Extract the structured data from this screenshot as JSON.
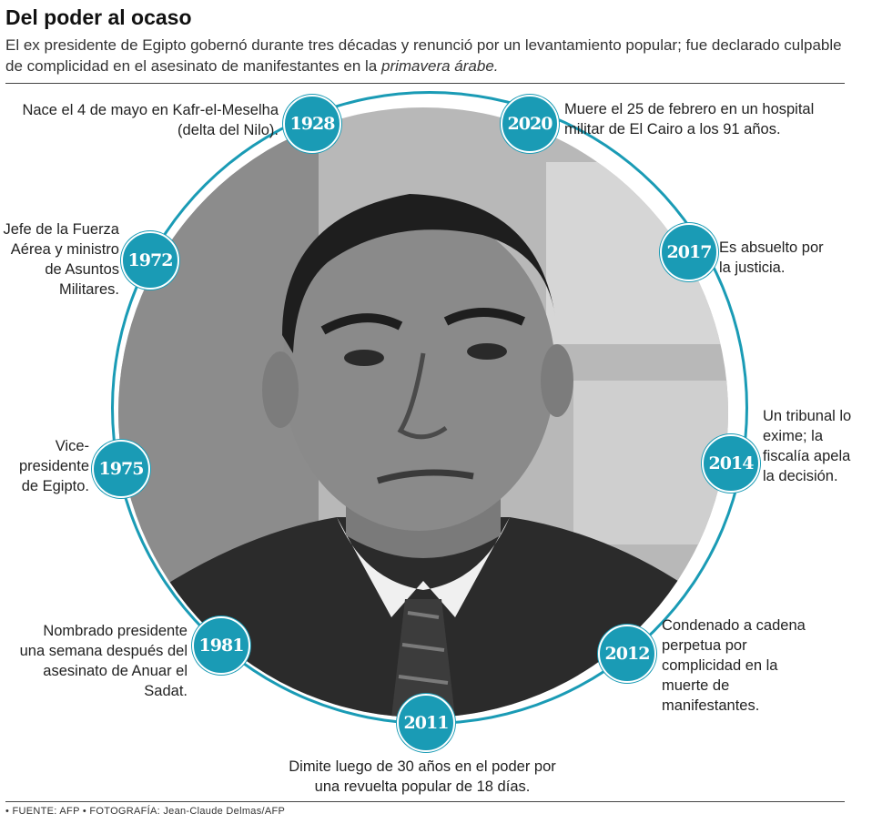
{
  "header": {
    "title": "Del poder al ocaso",
    "subtitle_main": "El ex presidente de Egipto gobernó durante tres décadas y renunció por un levantamiento popular; fue declarado culpable de complicidad en el asesinato de manifestantes en la",
    "subtitle_italic": "primavera árabe."
  },
  "timeline": [
    {
      "year": "1928",
      "text": "Nace el 4 de mayo en Kafr-el-Meselha (delta del Nilo)."
    },
    {
      "year": "1972",
      "text": "Jefe de la Fuerza Aérea y ministro de Asuntos Militares."
    },
    {
      "year": "1975",
      "text": "Vice-presidente de Egipto."
    },
    {
      "year": "1981",
      "text": "Nombrado presidente una semana después del asesinato de Anuar el Sadat."
    },
    {
      "year": "2011",
      "text": "Dimite luego de 30 años en el poder por una revuelta popular de 18 días."
    },
    {
      "year": "2012",
      "text": "Condenado a cadena perpetua por complicidad en la muerte de manifestantes."
    },
    {
      "year": "2014",
      "text": "Un tribunal lo exime; la fiscalía apela la decisión."
    },
    {
      "year": "2017",
      "text": "Es absuelto por la justicia."
    },
    {
      "year": "2020",
      "text": "Muere el 25 de febrero en un hospital militar de El Cairo a los 91 años."
    }
  ],
  "footer": {
    "credit": "• FUENTE: AFP • FOTOGRAFÍA:  Jean-Claude Delmas/AFP"
  },
  "colors": {
    "accent": "#1a9bb5"
  },
  "photo_description_icon": "portrait-photo"
}
